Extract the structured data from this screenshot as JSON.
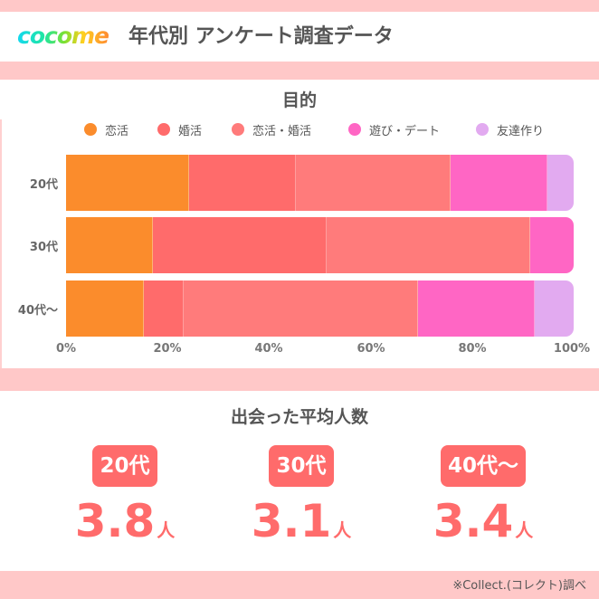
{
  "header": {
    "logo_text": "cocome",
    "title": "年代別 アンケート調査データ"
  },
  "purpose_chart": {
    "title": "目的",
    "legend": [
      {
        "label": "恋活",
        "color": "#fb8c2c"
      },
      {
        "label": "婚活",
        "color": "#ff6b6b"
      },
      {
        "label": "恋活・婚活",
        "color": "#ff7b7b"
      },
      {
        "label": "遊び・デート",
        "color": "#ff66c4"
      },
      {
        "label": "友達作り",
        "color": "#e2aaf0"
      }
    ],
    "x_ticks": [
      "0%",
      "20%",
      "40%",
      "60%",
      "80%",
      "100%"
    ]
  },
  "chart_data": {
    "type": "bar",
    "orientation": "horizontal",
    "stacked": true,
    "title": "目的",
    "categories": [
      "20代",
      "30代",
      "40代〜"
    ],
    "series": [
      {
        "name": "恋活",
        "color": "#fb8c2c",
        "values": [
          24.3,
          17.1,
          15.4
        ]
      },
      {
        "name": "婚活",
        "color": "#ff6b6b",
        "values": [
          20.9,
          34.3,
          7.7
        ]
      },
      {
        "name": "恋活・婚活",
        "color": "#ff7b7b",
        "values": [
          30.6,
          40.0,
          46.2
        ]
      },
      {
        "name": "遊び・デート",
        "color": "#ff66c4",
        "values": [
          19.0,
          8.6,
          23.1
        ]
      },
      {
        "name": "友達作り",
        "color": "#e2aaf0",
        "values": [
          5.2,
          0,
          7.6
        ]
      }
    ],
    "xlabel": "",
    "ylabel": "",
    "xlim": [
      0,
      100
    ],
    "x_tick_labels": [
      "0%",
      "20%",
      "40%",
      "60%",
      "80%",
      "100%"
    ],
    "legend_position": "top",
    "grid": false
  },
  "average_met": {
    "title": "出会った平均人数",
    "items": [
      {
        "age": "20代",
        "value": "3.8",
        "unit": "人"
      },
      {
        "age": "30代",
        "value": "3.1",
        "unit": "人"
      },
      {
        "age": "40代〜",
        "value": "3.4",
        "unit": "人"
      }
    ]
  },
  "footer": {
    "source": "※Collect.(コレクト)調べ"
  }
}
